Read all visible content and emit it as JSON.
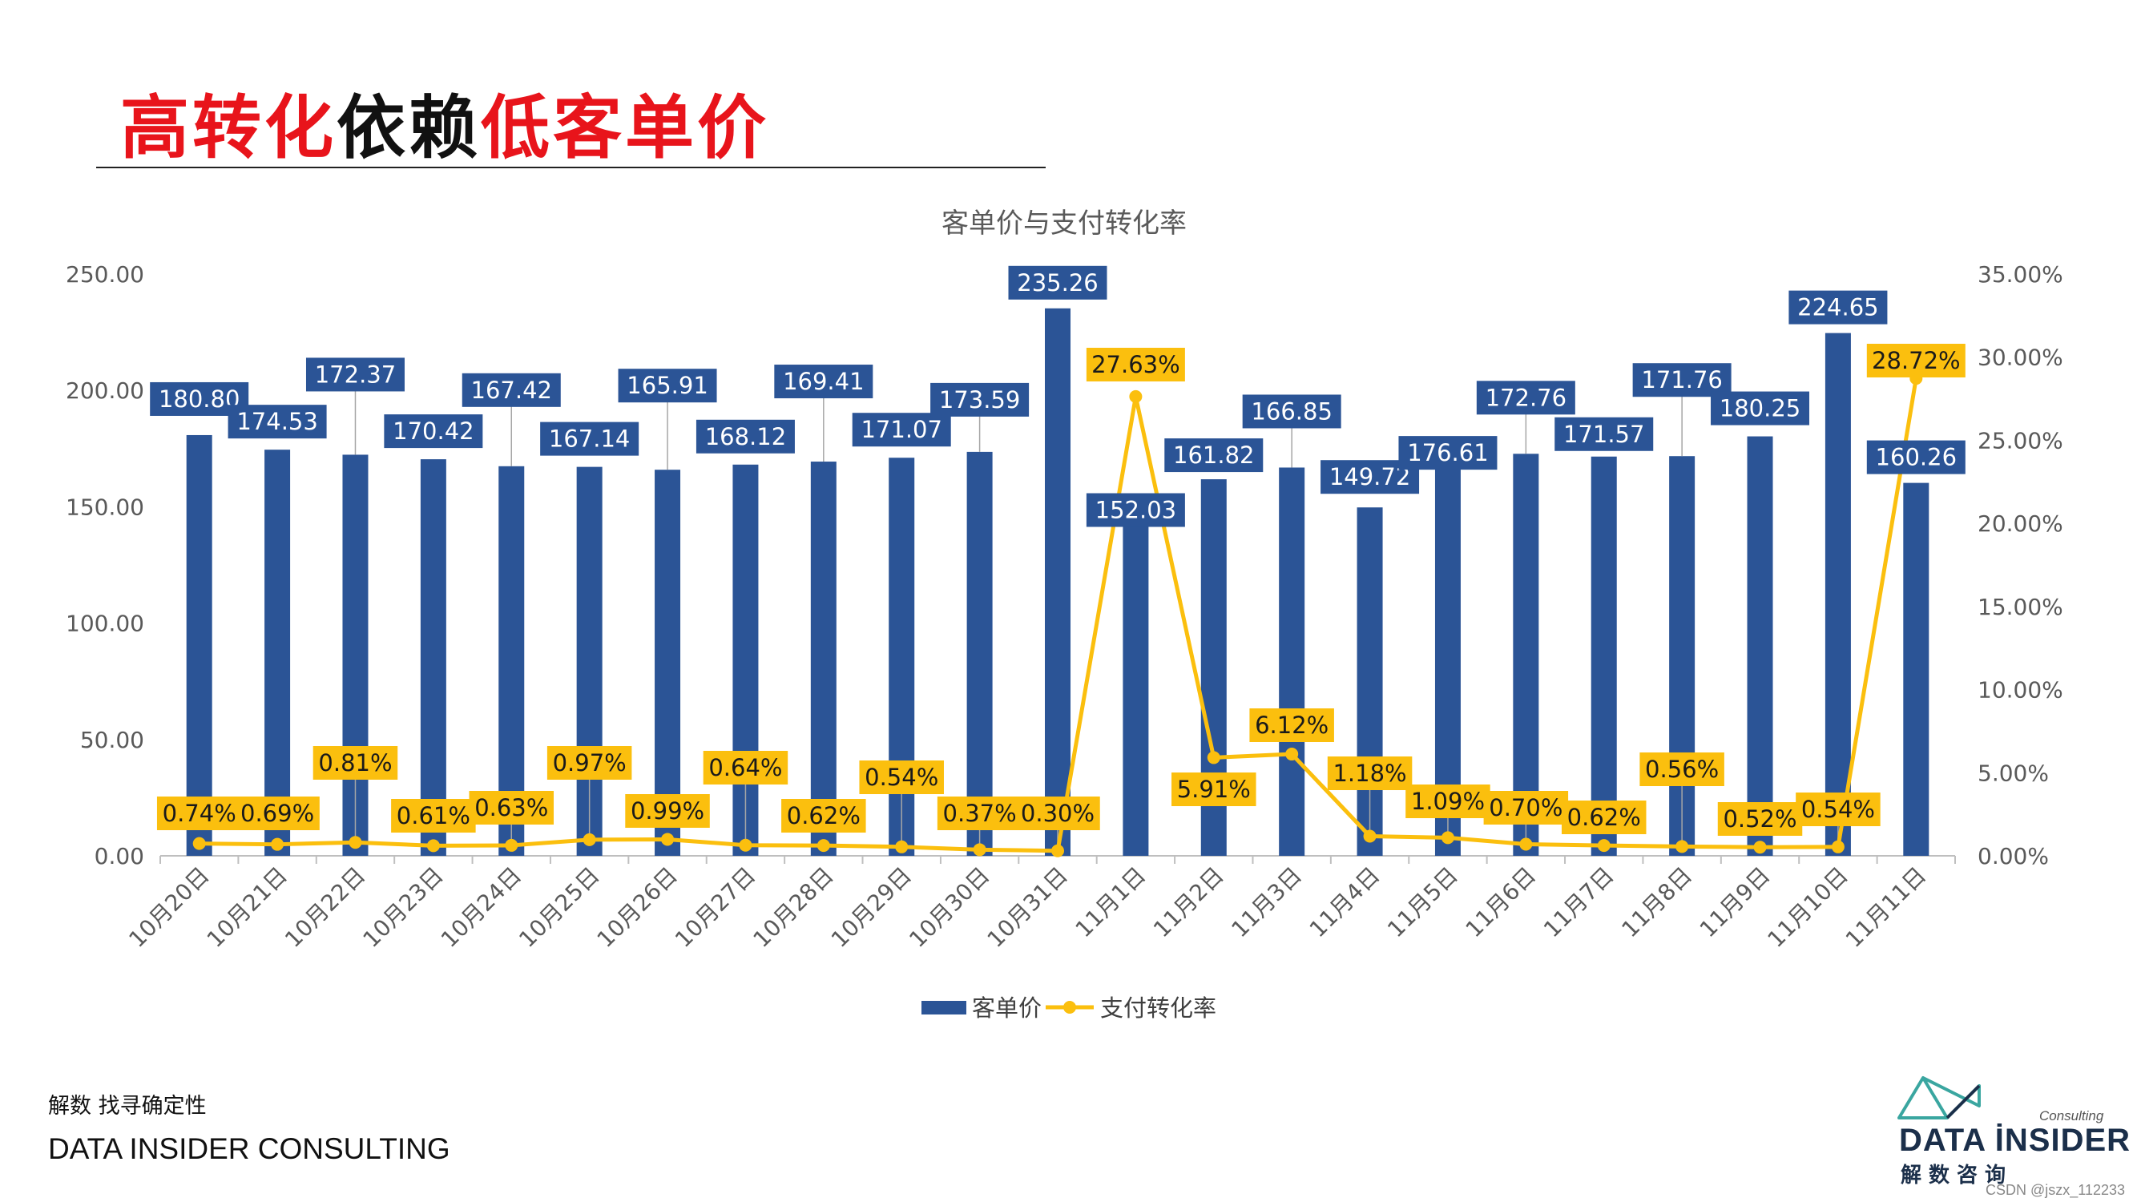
{
  "page": {
    "title_parts": [
      "高转化",
      "依赖",
      "低客单价"
    ],
    "footer_tagline": "解数 找寻确定性",
    "footer_company": "DATA INSIDER CONSULTING",
    "logo_consulting": "Consulting",
    "logo_name": "DATA İNSIDER",
    "logo_cn": "解数咨询",
    "watermark": "CSDN @jszx_112233"
  },
  "colors": {
    "bar": "#2b5496",
    "line": "#fbbf0e",
    "label_bg_bar": "#2b5496",
    "label_bg_line": "#fbbf0e",
    "title_red": "#e8141b"
  },
  "chart_data": {
    "type": "bar+line",
    "title": "客单价与支付转化率",
    "categories": [
      "10月20日",
      "10月21日",
      "10月22日",
      "10月23日",
      "10月24日",
      "10月25日",
      "10月26日",
      "10月27日",
      "10月28日",
      "10月29日",
      "10月30日",
      "10月31日",
      "11月1日",
      "11月2日",
      "11月3日",
      "11月4日",
      "11月5日",
      "11月6日",
      "11月7日",
      "11月8日",
      "11月9日",
      "11月10日",
      "11月11日"
    ],
    "series": [
      {
        "name": "客单价",
        "type": "bar",
        "axis": "left",
        "values": [
          180.8,
          174.53,
          172.37,
          170.42,
          167.42,
          167.14,
          165.91,
          168.12,
          169.41,
          171.07,
          173.59,
          235.26,
          152.03,
          161.82,
          166.85,
          149.72,
          176.61,
          172.76,
          171.57,
          171.76,
          180.25,
          224.65,
          160.26
        ],
        "labels": [
          "180.80",
          "174.53",
          "172.37",
          "170.42",
          "167.42",
          "167.14",
          "165.91",
          "168.12",
          "169.41",
          "171.07",
          "173.59",
          "235.26",
          "152.03",
          "161.82",
          "166.85",
          "149.72",
          "176.61",
          "172.76",
          "171.57",
          "171.76",
          "180.25",
          "224.65",
          "160.26"
        ]
      },
      {
        "name": "支付转化率",
        "type": "line",
        "axis": "right",
        "values": [
          0.74,
          0.69,
          0.81,
          0.61,
          0.63,
          0.97,
          0.99,
          0.64,
          0.62,
          0.54,
          0.37,
          0.3,
          27.63,
          5.91,
          6.12,
          1.18,
          1.09,
          0.7,
          0.62,
          0.56,
          0.52,
          0.54,
          28.72
        ],
        "labels": [
          "0.74%",
          "0.69%",
          "0.81%",
          "0.61%",
          "0.63%",
          "0.97%",
          "0.99%",
          "0.64%",
          "0.62%",
          "0.54%",
          "0.37%",
          "0.30%",
          "27.63%",
          "5.91%",
          "6.12%",
          "1.18%",
          "1.09%",
          "0.70%",
          "0.62%",
          "0.56%",
          "0.52%",
          "0.54%",
          "28.72%"
        ]
      }
    ],
    "y_left": {
      "min": 0,
      "max": 250,
      "ticks": [
        "0.00",
        "50.00",
        "100.00",
        "150.00",
        "200.00",
        "250.00"
      ]
    },
    "y_right": {
      "min": 0,
      "max": 35,
      "ticks": [
        "0.00%",
        "5.00%",
        "10.00%",
        "15.00%",
        "20.00%",
        "25.00%",
        "30.00%",
        "35.00%"
      ]
    },
    "grid": false,
    "legend_position": "bottom"
  }
}
